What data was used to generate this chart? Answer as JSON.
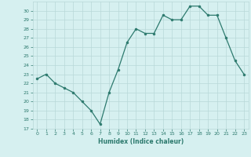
{
  "x": [
    0,
    1,
    2,
    3,
    4,
    5,
    6,
    7,
    8,
    9,
    10,
    11,
    12,
    13,
    14,
    15,
    16,
    17,
    18,
    19,
    20,
    21,
    22,
    23
  ],
  "y": [
    22.5,
    23.0,
    22.0,
    21.5,
    21.0,
    20.0,
    19.0,
    17.5,
    21.0,
    23.5,
    26.5,
    28.0,
    27.5,
    27.5,
    29.5,
    29.0,
    29.0,
    30.5,
    30.5,
    29.5,
    29.5,
    27.0,
    24.5,
    23.0
  ],
  "xlabel": "Humidex (Indice chaleur)",
  "ylabel": "",
  "ylim": [
    17,
    31
  ],
  "xlim": [
    -0.5,
    23.5
  ],
  "yticks": [
    17,
    18,
    19,
    20,
    21,
    22,
    23,
    24,
    25,
    26,
    27,
    28,
    29,
    30
  ],
  "xticks": [
    0,
    1,
    2,
    3,
    4,
    5,
    6,
    7,
    8,
    9,
    10,
    11,
    12,
    13,
    14,
    15,
    16,
    17,
    18,
    19,
    20,
    21,
    22,
    23
  ],
  "line_color": "#2d7a6e",
  "marker_color": "#2d7a6e",
  "bg_color": "#d6f0f0",
  "grid_color": "#b8d8d8",
  "axis_label_color": "#2d7a6e",
  "tick_label_color": "#2d7a6e"
}
